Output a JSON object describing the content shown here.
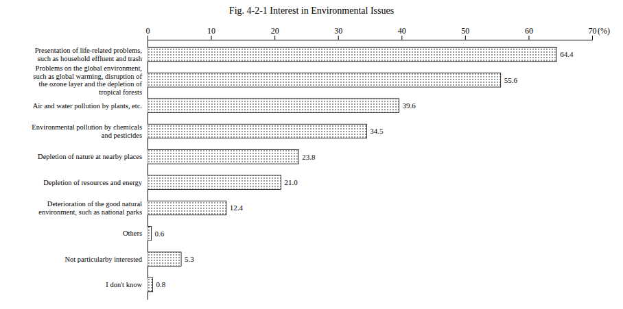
{
  "chart_data": {
    "type": "bar",
    "orientation": "horizontal",
    "title": "Fig. 4-2-1  Interest in Environmental Issues",
    "xlabel": "(%)",
    "categories": [
      "Presentation of life-related problems,\nsuch as household effluent and trash",
      "Problems on the global environment,\nsuch as global warming, disruption of\nthe ozone layer and the depletion of\ntropical forests",
      "Air and water pollution by plants, etc.",
      "Environmental pollution by chemicals\nand pesticides",
      "Depletion of nature at nearby places",
      "Depletion of resources and energy",
      "Deterioration of the good natural\nenvironment, such as national parks",
      "Others",
      "Not particularby interested",
      "I don't know"
    ],
    "values": [
      64.4,
      55.6,
      39.6,
      34.5,
      23.8,
      21.0,
      12.4,
      0.6,
      5.3,
      0.8
    ],
    "value_labels": [
      "64.4",
      "55.6",
      "39.6",
      "34.5",
      "23.8",
      "21.0",
      "12.4",
      "0.6",
      "5.3",
      "0.8"
    ],
    "data_labels": true,
    "color": "#ffffff",
    "xlim": [
      0,
      70
    ],
    "xticks": [
      0,
      10,
      20,
      30,
      40,
      50,
      60,
      70
    ],
    "grid": false
  }
}
